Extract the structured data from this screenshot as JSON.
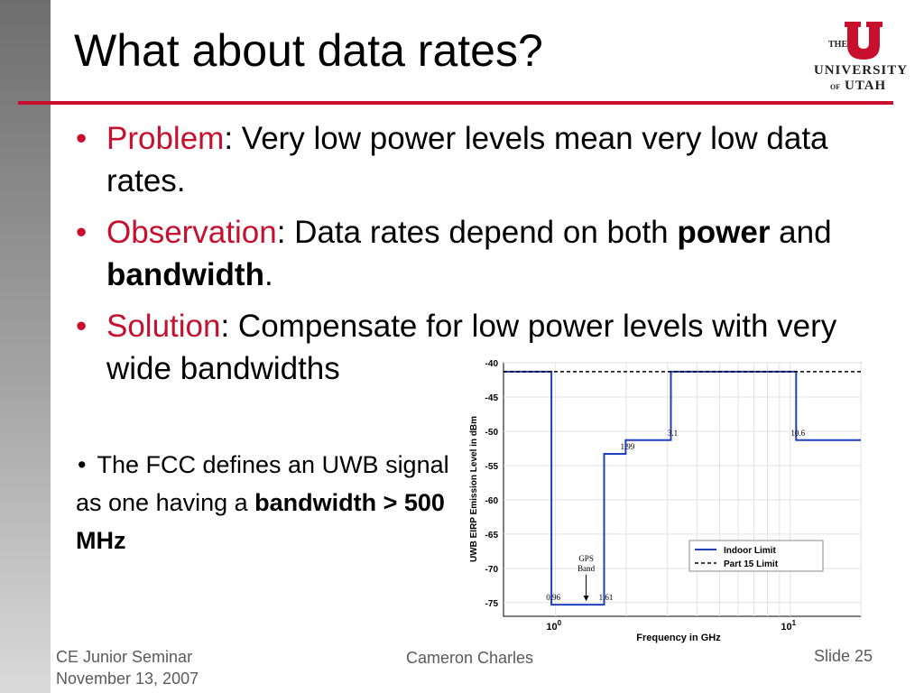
{
  "slide": {
    "title": "What about data rates?",
    "bullets": [
      {
        "keyword": "Problem",
        "text": ": Very low power levels mean very low data rates."
      },
      {
        "keyword": "Observation",
        "text1": ": Data rates depend on both ",
        "bold1": "power",
        "text2": " and ",
        "bold2": "bandwidth",
        "text3": "."
      },
      {
        "keyword": "Solution",
        "text": ": Compensate for low power levels with very wide bandwidths"
      }
    ],
    "note": {
      "text": "The FCC defines an UWB signal as one having a ",
      "bold": "bandwidth > 500 MHz"
    }
  },
  "logo": {
    "line1": "THE",
    "line2": "UNIVERSITY",
    "line3a": "OF",
    "line3b": "UTAH",
    "letter": "U"
  },
  "footer": {
    "course": "CE Junior Seminar",
    "date": "November 13, 2007",
    "author": "Cameron Charles",
    "slide": "Slide 25"
  },
  "colors": {
    "accent": "#c8102e",
    "indoor_limit": "#1f3fbf"
  },
  "chart_data": {
    "type": "line",
    "xlabel": "Frequency in GHz",
    "ylabel": "UWB EIRP Emission Level in dBm",
    "x_scale": "log",
    "ylim": [
      -77,
      -40
    ],
    "y_ticks": [
      "-40",
      "-45",
      "-50",
      "-55",
      "-60",
      "-65",
      "-70",
      "-75"
    ],
    "x_ticks": [
      {
        "base": "10",
        "exp": "0",
        "value": 1
      },
      {
        "base": "10",
        "exp": "1",
        "value": 10
      }
    ],
    "series": [
      {
        "name": "Indoor Limit",
        "color": "#1f3fbf",
        "style": "solid",
        "points": [
          [
            0.6,
            -41.3
          ],
          [
            0.96,
            -41.3
          ],
          [
            0.96,
            -75.3
          ],
          [
            1.61,
            -75.3
          ],
          [
            1.61,
            -53.3
          ],
          [
            1.99,
            -53.3
          ],
          [
            1.99,
            -51.3
          ],
          [
            3.1,
            -51.3
          ],
          [
            3.1,
            -41.3
          ],
          [
            10.6,
            -41.3
          ],
          [
            10.6,
            -51.3
          ],
          [
            20,
            -51.3
          ]
        ]
      },
      {
        "name": "Part 15 Limit",
        "color": "#000000",
        "style": "dashed",
        "points": [
          [
            0.6,
            -41.3
          ],
          [
            20,
            -41.3
          ]
        ]
      }
    ],
    "annotations": [
      {
        "text": "0.96",
        "x": 0.96,
        "y": -75.3
      },
      {
        "text": "1.61",
        "x": 1.61,
        "y": -75.3
      },
      {
        "text": "1.99",
        "x": 1.99,
        "y": -53.3
      },
      {
        "text": "3.1",
        "x": 3.1,
        "y": -51.3
      },
      {
        "text": "10.6",
        "x": 10.6,
        "y": -51.3
      }
    ],
    "gps_band": {
      "line1": "GPS",
      "line2": "Band",
      "x": 1.35
    },
    "legend": {
      "position": "bottom-right",
      "entries": [
        "Indoor Limit",
        "Part 15 Limit"
      ]
    },
    "grid": true
  }
}
